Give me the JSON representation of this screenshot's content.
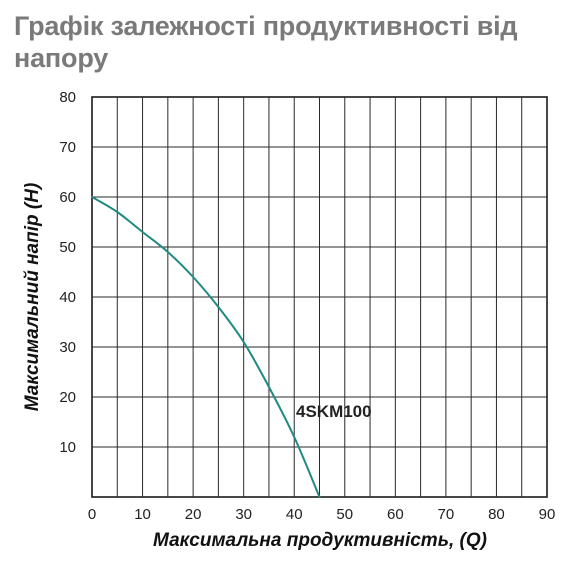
{
  "chart_data": {
    "type": "line",
    "title": "Графік залежності продуктивності від напору",
    "xlabel": "Максимальна продуктивність, (Q)",
    "ylabel": "Максимальний напір (H)",
    "xlim": [
      0,
      90
    ],
    "ylim": [
      0,
      80
    ],
    "x_ticks": [
      0,
      10,
      20,
      30,
      40,
      50,
      60,
      70,
      80,
      90
    ],
    "y_ticks": [
      10,
      20,
      30,
      40,
      50,
      60,
      70,
      80
    ],
    "x_tick_labels": [
      "0",
      "10",
      "20",
      "30",
      "40",
      "50",
      "60",
      "70",
      "80",
      "90"
    ],
    "y_tick_labels": [
      "10",
      "20",
      "30",
      "40",
      "50",
      "60",
      "70",
      "80"
    ],
    "grid": true,
    "minor_grid_x_step": 5,
    "minor_grid_y_step": 10,
    "series": [
      {
        "name": "4SKM100",
        "color": "#1f8a80",
        "x": [
          0,
          5,
          10,
          15,
          20,
          25,
          30,
          35,
          40,
          45
        ],
        "y": [
          60,
          57,
          53,
          49,
          44,
          38,
          31,
          22,
          12,
          0
        ]
      }
    ]
  }
}
